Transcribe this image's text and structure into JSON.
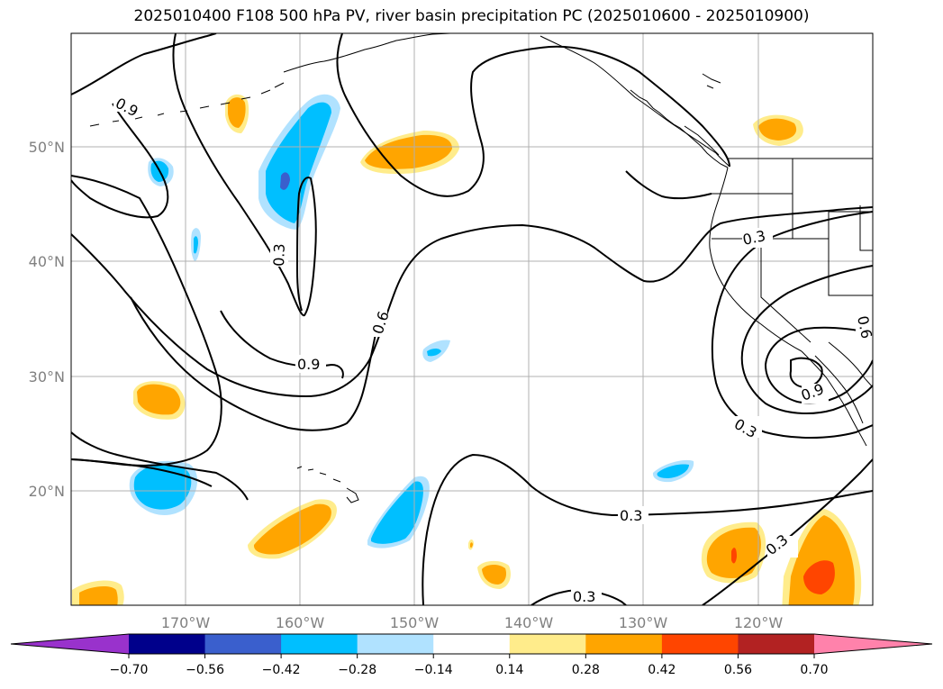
{
  "title": "2025010400 F108 500 hPa PV, river basin precipitation PC (2025010600 - 2025010900)",
  "map": {
    "lat_ticks": [
      {
        "value": 50,
        "label": "50°N"
      },
      {
        "value": 40,
        "label": "40°N"
      },
      {
        "value": 30,
        "label": "30°N"
      },
      {
        "value": 20,
        "label": "20°N"
      }
    ],
    "lon_ticks": [
      {
        "value": -170,
        "label": "170°W"
      },
      {
        "value": -160,
        "label": "160°W"
      },
      {
        "value": -150,
        "label": "150°W"
      },
      {
        "value": -140,
        "label": "140°W"
      },
      {
        "value": -130,
        "label": "130°W"
      },
      {
        "value": -120,
        "label": "120°W"
      }
    ],
    "contour_labels": [
      {
        "text": "0.9"
      },
      {
        "text": "0.3"
      },
      {
        "text": "0.6"
      },
      {
        "text": "0.9"
      },
      {
        "text": "0.3"
      },
      {
        "text": "0.3"
      },
      {
        "text": "0.3"
      },
      {
        "text": "0.3"
      },
      {
        "text": "0.3"
      },
      {
        "text": "0.9"
      },
      {
        "text": "0.6"
      }
    ]
  },
  "colorbar": {
    "ticks": [
      "−0.70",
      "−0.56",
      "−0.42",
      "−0.28",
      "−0.14",
      "0.14",
      "0.28",
      "0.42",
      "0.56",
      "0.70"
    ],
    "colors": {
      "under": "#9932cc",
      "bins": [
        "#00008b",
        "#3a5fcd",
        "#00bfff",
        "#b0e2ff",
        "#ffffff",
        "#ffec8b",
        "#ffa500",
        "#ff4500",
        "#b22222"
      ],
      "over": "#ff82ab"
    }
  }
}
